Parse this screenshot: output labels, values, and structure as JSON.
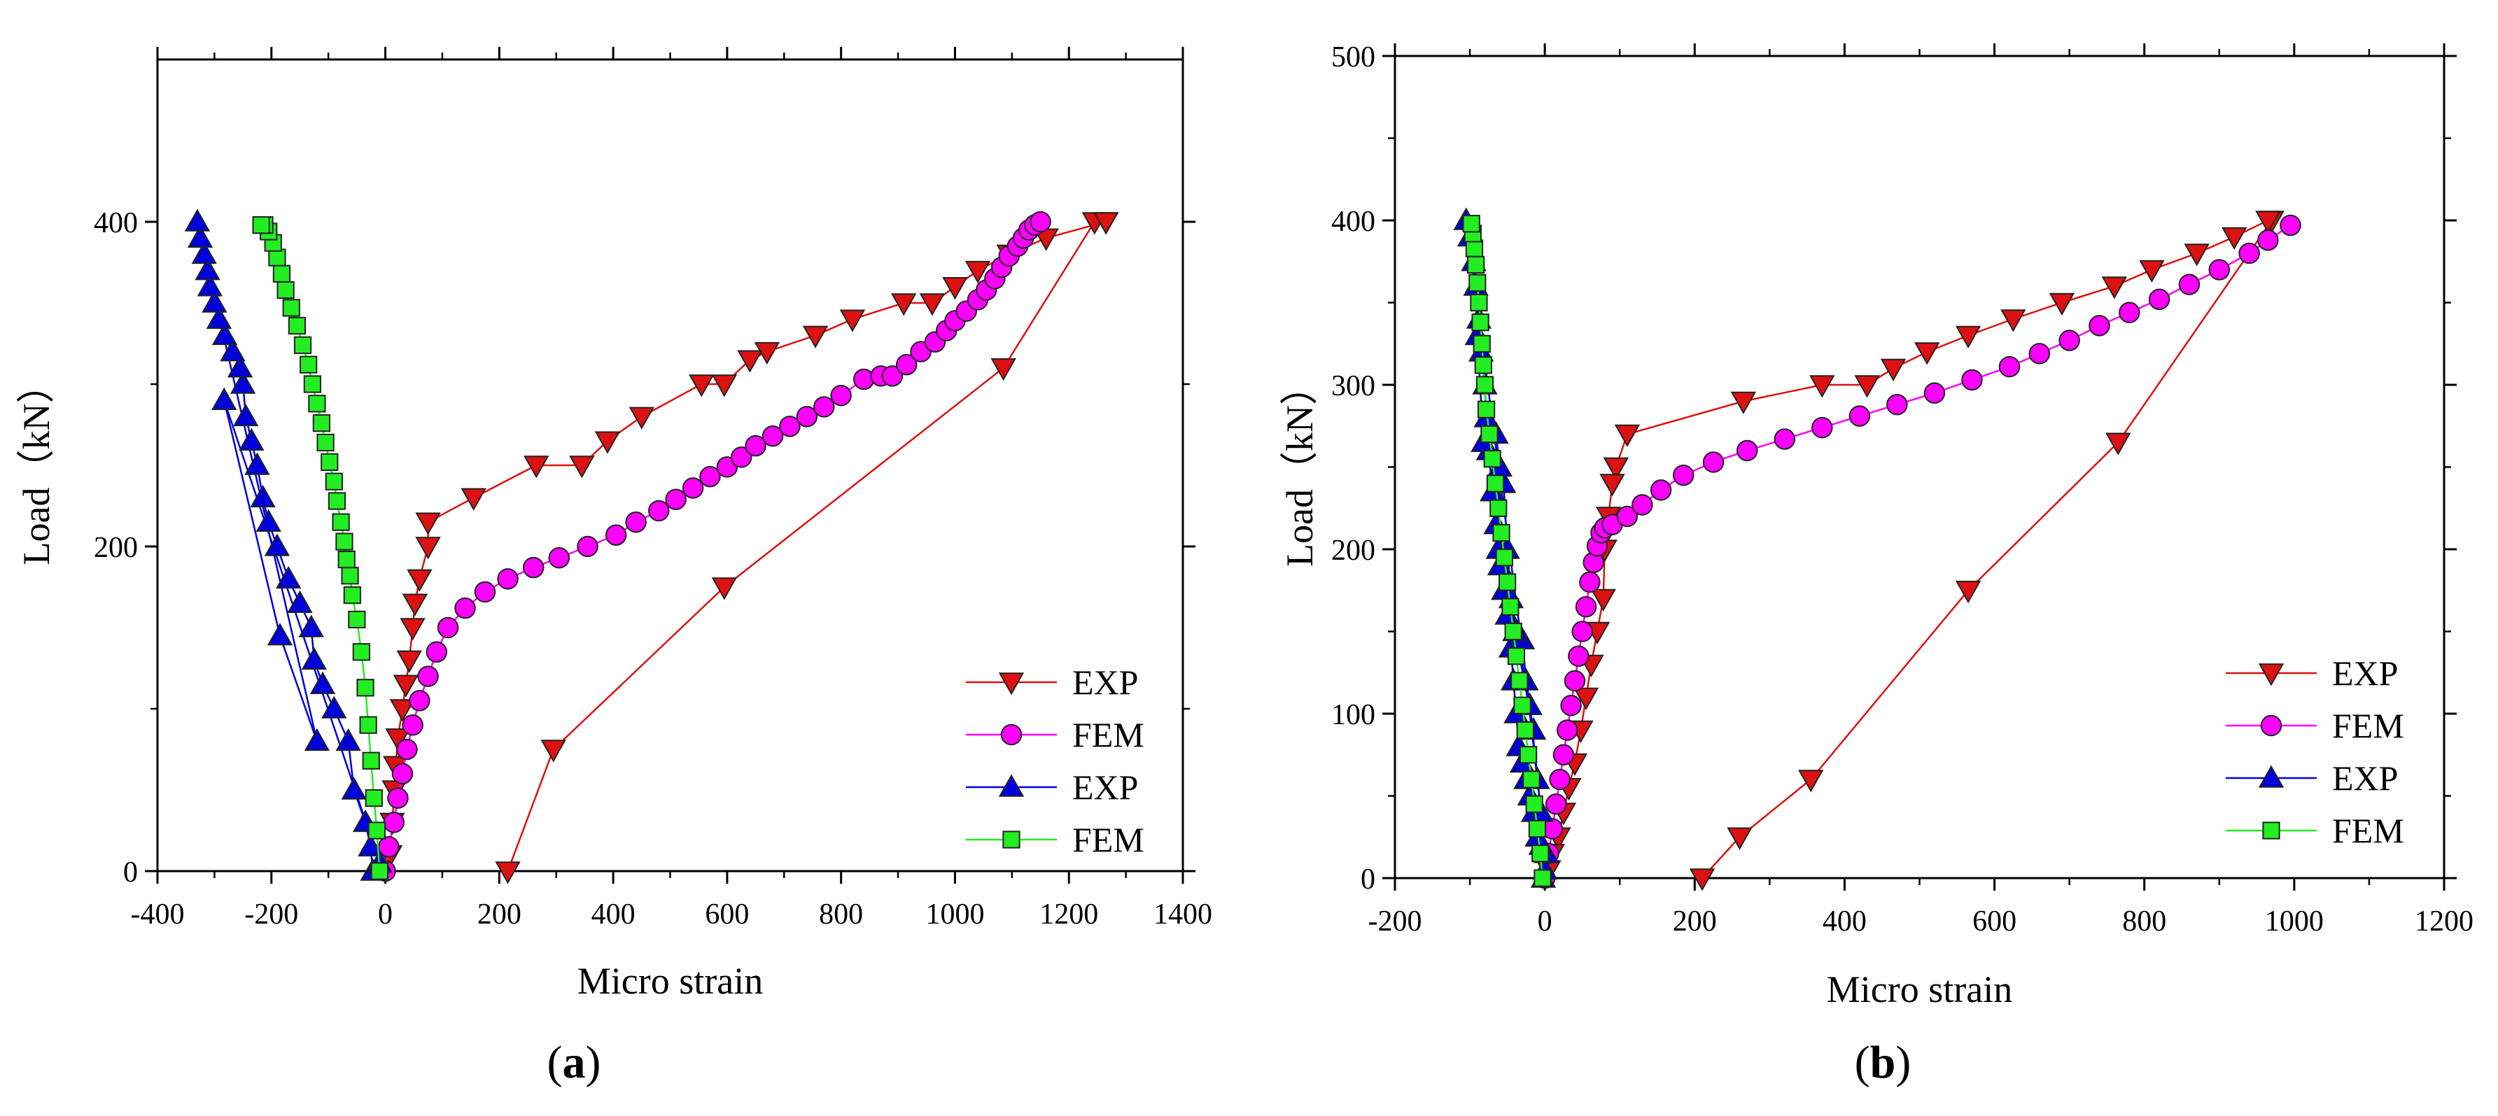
{
  "chart_data": [
    {
      "type": "line",
      "panel": "a",
      "xlabel": "Micro strain",
      "ylabel": "Load（kN）",
      "xlim": [
        -400,
        1400
      ],
      "ylim": [
        0,
        500
      ],
      "xticks": [
        -400,
        -200,
        0,
        200,
        400,
        600,
        800,
        1000,
        1200,
        1400
      ],
      "yticks": [
        0,
        200,
        400
      ],
      "legend_position": "bottom-right",
      "series": [
        {
          "name": "EXP",
          "color": "#dd1111",
          "marker": "triangle-down",
          "x": [
            215,
            295,
            595,
            1085,
            1245,
            1265,
            1265,
            1160,
            1095,
            1040,
            1000,
            960,
            910,
            820,
            755,
            670,
            640,
            595,
            555,
            450,
            390,
            345,
            265,
            155,
            75,
            75,
            60,
            52,
            48,
            42,
            36,
            30,
            22,
            18,
            16,
            12,
            8
          ],
          "y": [
            0,
            75,
            175,
            310,
            400,
            400,
            400,
            390,
            380,
            370,
            360,
            350,
            350,
            340,
            330,
            320,
            315,
            300,
            300,
            280,
            265,
            250,
            250,
            230,
            215,
            200,
            180,
            165,
            150,
            130,
            115,
            100,
            82,
            65,
            50,
            30,
            10
          ]
        },
        {
          "name": "FEM",
          "color": "#ff00ff",
          "marker": "circle",
          "x": [
            0,
            6,
            15,
            22,
            30,
            38,
            48,
            60,
            75,
            90,
            110,
            140,
            175,
            215,
            260,
            305,
            355,
            405,
            440,
            480,
            510,
            540,
            570,
            600,
            625,
            650,
            680,
            710,
            740,
            770,
            800,
            840,
            870,
            890,
            915,
            940,
            965,
            985,
            1000,
            1020,
            1040,
            1055,
            1070,
            1082,
            1095,
            1110,
            1120,
            1130,
            1140,
            1150
          ],
          "y": [
            0,
            15,
            30,
            45,
            60,
            75,
            90,
            105,
            120,
            135,
            150,
            162,
            172,
            180,
            187,
            193,
            200,
            207,
            215,
            222,
            229,
            236,
            243,
            249,
            255,
            262,
            268,
            274,
            280,
            286,
            293,
            303,
            305,
            305,
            312,
            320,
            326,
            333,
            339,
            345,
            352,
            358,
            365,
            372,
            379,
            385,
            390,
            395,
            398,
            400
          ]
        },
        {
          "name": "EXP",
          "color": "#0000dd",
          "marker": "triangle-up",
          "x": [
            -22,
            -26,
            -35,
            -55,
            -65,
            -90,
            -110,
            -125,
            -130,
            -150,
            -170,
            -190,
            -205,
            -215,
            -225,
            -235,
            -245,
            -250,
            -255,
            -268,
            -282,
            -292,
            -300,
            -308,
            -312,
            -318,
            -325,
            -330,
            -120,
            -185,
            -283,
            -10
          ],
          "y": [
            0,
            15,
            30,
            50,
            80,
            100,
            115,
            130,
            150,
            165,
            180,
            200,
            215,
            230,
            250,
            265,
            280,
            300,
            310,
            320,
            330,
            340,
            350,
            360,
            370,
            380,
            390,
            400,
            80,
            145,
            290,
            5
          ]
        },
        {
          "name": "FEM",
          "color": "#22ee22",
          "marker": "square",
          "x": [
            -10,
            -15,
            -20,
            -25,
            -30,
            -35,
            -42,
            -50,
            -58,
            -62,
            -68,
            -72,
            -78,
            -85,
            -90,
            -98,
            -105,
            -112,
            -120,
            -128,
            -135,
            -145,
            -155,
            -165,
            -175,
            -182,
            -190,
            -197,
            -205,
            -212,
            -218
          ],
          "y": [
            0,
            25,
            45,
            68,
            90,
            113,
            135,
            155,
            170,
            182,
            192,
            203,
            215,
            228,
            240,
            252,
            264,
            276,
            288,
            300,
            312,
            324,
            336,
            347,
            358,
            368,
            378,
            387,
            394,
            398,
            398
          ]
        }
      ]
    },
    {
      "type": "line",
      "panel": "b",
      "xlabel": "Micro strain",
      "ylabel": "Load（kN）",
      "xlim": [
        -200,
        1200
      ],
      "ylim": [
        0,
        500
      ],
      "xticks": [
        -200,
        0,
        200,
        400,
        600,
        800,
        1000,
        1200
      ],
      "yticks": [
        0,
        100,
        200,
        300,
        400,
        500
      ],
      "legend_position": "bottom-right",
      "series": [
        {
          "name": "EXP",
          "color": "#dd1111",
          "marker": "triangle-down",
          "x": [
            210,
            260,
            355,
            565,
            765,
            970,
            965,
            920,
            870,
            810,
            760,
            690,
            625,
            565,
            510,
            465,
            430,
            370,
            265,
            110,
            95,
            90,
            85,
            80,
            78,
            70,
            62,
            55,
            48,
            40,
            32,
            25,
            18,
            10,
            5
          ],
          "y": [
            0,
            25,
            60,
            175,
            265,
            400,
            400,
            390,
            380,
            370,
            360,
            350,
            340,
            330,
            320,
            310,
            300,
            300,
            290,
            270,
            250,
            240,
            220,
            200,
            170,
            150,
            130,
            110,
            90,
            70,
            55,
            40,
            25,
            15,
            5
          ],
          "label_note": ""
        },
        {
          "name": "FEM",
          "color": "#ff00ff",
          "marker": "circle",
          "x": [
            0,
            5,
            10,
            15,
            20,
            25,
            30,
            35,
            40,
            45,
            50,
            55,
            60,
            65,
            70,
            75,
            80,
            90,
            110,
            130,
            155,
            185,
            225,
            270,
            320,
            370,
            420,
            470,
            520,
            570,
            620,
            660,
            700,
            740,
            780,
            820,
            860,
            900,
            940,
            965,
            995
          ],
          "y": [
            0,
            15,
            30,
            45,
            60,
            75,
            90,
            105,
            120,
            135,
            150,
            165,
            180,
            192,
            202,
            210,
            213,
            215,
            220,
            227,
            236,
            245,
            253,
            260,
            267,
            274,
            281,
            288,
            295,
            303,
            311,
            319,
            327,
            336,
            344,
            352,
            361,
            370,
            380,
            388,
            397
          ]
        },
        {
          "name": "EXP",
          "color": "#0000dd",
          "marker": "triangle-up",
          "x": [
            -2,
            0,
            2,
            -5,
            -10,
            -15,
            -20,
            -25,
            -30,
            -35,
            -38,
            -42,
            -45,
            -50,
            -55,
            -60,
            -62,
            -65,
            -70,
            -75,
            -78,
            -80,
            -85,
            -88,
            -92,
            -95,
            -100,
            -105,
            -20,
            -5,
            -10,
            -25,
            -30,
            -40,
            -15,
            -45,
            -50,
            -55,
            -60,
            -65,
            -82,
            -90
          ],
          "y": [
            0,
            5,
            15,
            20,
            25,
            40,
            50,
            60,
            70,
            80,
            100,
            120,
            140,
            160,
            175,
            190,
            200,
            215,
            235,
            260,
            280,
            300,
            320,
            340,
            360,
            375,
            390,
            400,
            105,
            40,
            60,
            120,
            145,
            150,
            90,
            170,
            200,
            240,
            250,
            270,
            265,
            330
          ]
        },
        {
          "name": "FEM",
          "color": "#22ee22",
          "marker": "square",
          "x": [
            -3,
            -6,
            -10,
            -14,
            -18,
            -22,
            -26,
            -30,
            -34,
            -38,
            -42,
            -46,
            -50,
            -54,
            -58,
            -62,
            -66,
            -70,
            -74,
            -78,
            -80,
            -82,
            -84,
            -86,
            -88,
            -90,
            -92,
            -94,
            -96,
            -98
          ],
          "y": [
            0,
            15,
            30,
            45,
            60,
            75,
            90,
            105,
            120,
            135,
            150,
            165,
            180,
            195,
            210,
            225,
            240,
            255,
            270,
            285,
            300,
            312,
            325,
            338,
            350,
            362,
            373,
            383,
            392,
            398
          ]
        }
      ]
    }
  ],
  "panel_labels": [
    "(a)",
    "(b)"
  ],
  "panel_letters": [
    "a",
    "b"
  ]
}
